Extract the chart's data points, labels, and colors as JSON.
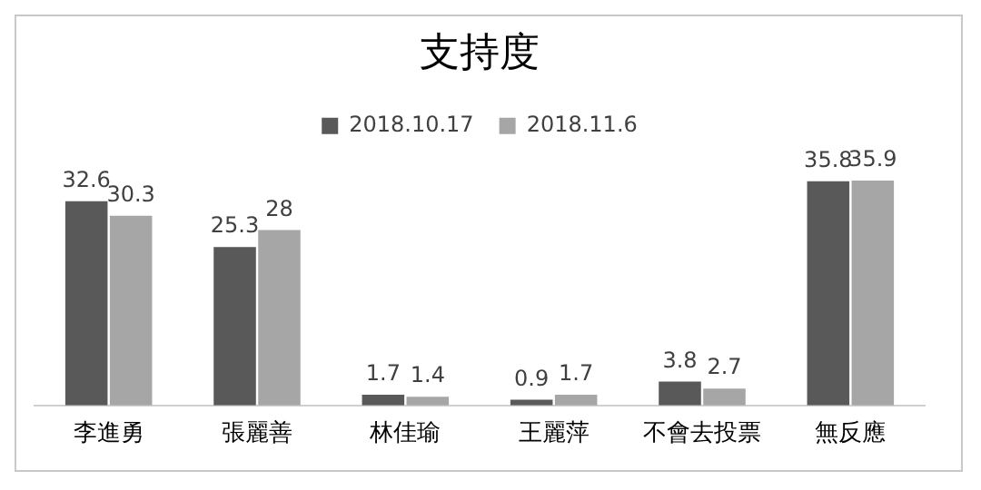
{
  "chart_data": {
    "type": "bar",
    "title": "支持度",
    "categories": [
      "李進勇",
      "張麗善",
      "林佳瑜",
      "王麗萍",
      "不會去投票",
      "無反應"
    ],
    "series": [
      {
        "name": "2018.10.17",
        "color": "#595959",
        "values": [
          32.6,
          25.3,
          1.7,
          0.9,
          3.8,
          35.8
        ]
      },
      {
        "name": "2018.11.6",
        "color": "#a6a6a6",
        "values": [
          30.3,
          28,
          1.4,
          1.7,
          2.7,
          35.9
        ]
      }
    ],
    "data_labels": true,
    "legend": "top",
    "grid": false,
    "tick_labels": "x"
  }
}
